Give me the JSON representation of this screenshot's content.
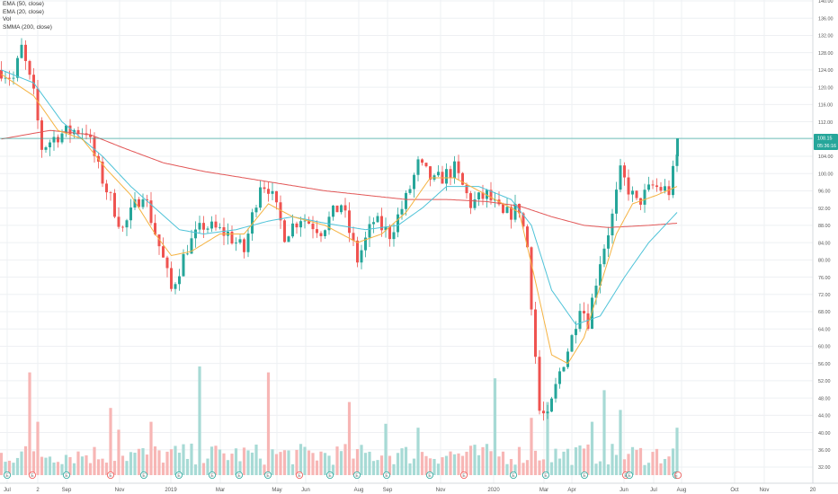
{
  "legend": {
    "ema50": "EMA (50, close)",
    "ema20": "EMA (20, close)",
    "vol": "Vol",
    "smma200": "SMMA (200, close)"
  },
  "price_tags": {
    "last_price": "108.15",
    "countdown": "05:36:16"
  },
  "colors": {
    "up": "#26a69a",
    "down": "#ef5350",
    "vol_up": "#a7dad5",
    "vol_down": "#f7b6b5",
    "ema50": "#4fc3d8",
    "ema20": "#f5b342",
    "smma200": "#e25757",
    "price_line": "#26a69a",
    "grid": "#eef0f3",
    "axis_text": "#555555"
  },
  "chart_data": {
    "type": "candlestick",
    "price_axis": {
      "ticks": [
        "140.00",
        "136.00",
        "132.00",
        "128.00",
        "124.00",
        "120.00",
        "116.00",
        "112.00",
        "108.00",
        "104.00",
        "100.00",
        "96.00",
        "92.00",
        "88.00",
        "84.00",
        "80.00",
        "76.00",
        "72.00",
        "68.00",
        "64.00",
        "60.00",
        "56.00",
        "52.00",
        "48.00",
        "44.00",
        "40.00",
        "36.00",
        "32.00"
      ],
      "range": [
        30,
        141
      ]
    },
    "time_axis": {
      "labels": [
        "Jul",
        "2",
        "Sep",
        "Nov",
        "2019",
        "Mar",
        "May",
        "Jun",
        "Aug",
        "Sep",
        "Nov",
        "2020",
        "Mar",
        "Apr",
        "Jun",
        "Jul",
        "Aug",
        "Oct",
        "Nov",
        "20"
      ]
    },
    "last_price": 108.15,
    "earnings_markers": 22,
    "price_path": [
      {
        "t": 0,
        "v": 124
      },
      {
        "t": 3,
        "v": 122
      },
      {
        "t": 5,
        "v": 129
      },
      {
        "t": 8,
        "v": 118
      },
      {
        "t": 10,
        "v": 106
      },
      {
        "t": 14,
        "v": 109
      },
      {
        "t": 18,
        "v": 110
      },
      {
        "t": 21,
        "v": 110
      },
      {
        "t": 24,
        "v": 101
      },
      {
        "t": 30,
        "v": 87
      },
      {
        "t": 35,
        "v": 96
      },
      {
        "t": 40,
        "v": 80
      },
      {
        "t": 42,
        "v": 73
      },
      {
        "t": 46,
        "v": 83
      },
      {
        "t": 50,
        "v": 88
      },
      {
        "t": 56,
        "v": 86
      },
      {
        "t": 60,
        "v": 82
      },
      {
        "t": 64,
        "v": 98
      },
      {
        "t": 66,
        "v": 97
      },
      {
        "t": 70,
        "v": 86
      },
      {
        "t": 74,
        "v": 90
      },
      {
        "t": 79,
        "v": 87
      },
      {
        "t": 84,
        "v": 93
      },
      {
        "t": 88,
        "v": 80
      },
      {
        "t": 92,
        "v": 89
      },
      {
        "t": 96,
        "v": 86
      },
      {
        "t": 100,
        "v": 94
      },
      {
        "t": 103,
        "v": 102
      },
      {
        "t": 107,
        "v": 98
      },
      {
        "t": 112,
        "v": 101
      },
      {
        "t": 116,
        "v": 93
      },
      {
        "t": 120,
        "v": 95
      },
      {
        "t": 124,
        "v": 90
      },
      {
        "t": 128,
        "v": 92
      },
      {
        "t": 130,
        "v": 83
      },
      {
        "t": 133,
        "v": 45
      },
      {
        "t": 135,
        "v": 43
      },
      {
        "t": 138,
        "v": 54
      },
      {
        "t": 141,
        "v": 62
      },
      {
        "t": 143,
        "v": 70
      },
      {
        "t": 145,
        "v": 66
      },
      {
        "t": 148,
        "v": 80
      },
      {
        "t": 151,
        "v": 90
      },
      {
        "t": 153,
        "v": 100
      },
      {
        "t": 157,
        "v": 93
      },
      {
        "t": 161,
        "v": 97
      },
      {
        "t": 165,
        "v": 96
      },
      {
        "t": 167,
        "v": 104
      }
    ],
    "ema50_path": [
      {
        "t": 0,
        "v": 124
      },
      {
        "t": 8,
        "v": 121
      },
      {
        "t": 15,
        "v": 112
      },
      {
        "t": 20,
        "v": 108
      },
      {
        "t": 25,
        "v": 104
      },
      {
        "t": 32,
        "v": 97
      },
      {
        "t": 38,
        "v": 92
      },
      {
        "t": 44,
        "v": 87
      },
      {
        "t": 50,
        "v": 86
      },
      {
        "t": 58,
        "v": 87
      },
      {
        "t": 66,
        "v": 89
      },
      {
        "t": 72,
        "v": 90
      },
      {
        "t": 80,
        "v": 88.5
      },
      {
        "t": 90,
        "v": 87
      },
      {
        "t": 98,
        "v": 88
      },
      {
        "t": 104,
        "v": 92
      },
      {
        "t": 110,
        "v": 97
      },
      {
        "t": 118,
        "v": 97
      },
      {
        "t": 126,
        "v": 94
      },
      {
        "t": 131,
        "v": 88
      },
      {
        "t": 136,
        "v": 73
      },
      {
        "t": 142,
        "v": 65
      },
      {
        "t": 148,
        "v": 67
      },
      {
        "t": 154,
        "v": 76
      },
      {
        "t": 160,
        "v": 84
      },
      {
        "t": 164,
        "v": 88
      },
      {
        "t": 167,
        "v": 91
      }
    ],
    "ema20_path": [
      {
        "t": 0,
        "v": 123
      },
      {
        "t": 8,
        "v": 118
      },
      {
        "t": 14,
        "v": 110
      },
      {
        "t": 20,
        "v": 108
      },
      {
        "t": 26,
        "v": 101
      },
      {
        "t": 32,
        "v": 95
      },
      {
        "t": 38,
        "v": 86
      },
      {
        "t": 42,
        "v": 81
      },
      {
        "t": 47,
        "v": 82
      },
      {
        "t": 54,
        "v": 86
      },
      {
        "t": 60,
        "v": 86
      },
      {
        "t": 66,
        "v": 93
      },
      {
        "t": 72,
        "v": 90
      },
      {
        "t": 80,
        "v": 88
      },
      {
        "t": 88,
        "v": 84
      },
      {
        "t": 94,
        "v": 86
      },
      {
        "t": 100,
        "v": 91
      },
      {
        "t": 106,
        "v": 99
      },
      {
        "t": 112,
        "v": 99
      },
      {
        "t": 120,
        "v": 95
      },
      {
        "t": 128,
        "v": 91
      },
      {
        "t": 132,
        "v": 75
      },
      {
        "t": 136,
        "v": 58
      },
      {
        "t": 140,
        "v": 56
      },
      {
        "t": 144,
        "v": 62
      },
      {
        "t": 148,
        "v": 74
      },
      {
        "t": 152,
        "v": 86
      },
      {
        "t": 156,
        "v": 93
      },
      {
        "t": 162,
        "v": 95
      },
      {
        "t": 167,
        "v": 97
      }
    ],
    "smma200_path": [
      {
        "t": 0,
        "v": 108
      },
      {
        "t": 12,
        "v": 110
      },
      {
        "t": 22,
        "v": 109
      },
      {
        "t": 30,
        "v": 106
      },
      {
        "t": 40,
        "v": 102.5
      },
      {
        "t": 50,
        "v": 100.5
      },
      {
        "t": 60,
        "v": 99
      },
      {
        "t": 70,
        "v": 97.5
      },
      {
        "t": 80,
        "v": 96
      },
      {
        "t": 90,
        "v": 95
      },
      {
        "t": 100,
        "v": 94
      },
      {
        "t": 110,
        "v": 94
      },
      {
        "t": 120,
        "v": 93.5
      },
      {
        "t": 128,
        "v": 92.5
      },
      {
        "t": 136,
        "v": 90
      },
      {
        "t": 144,
        "v": 88
      },
      {
        "t": 150,
        "v": 87.5
      },
      {
        "t": 160,
        "v": 88
      },
      {
        "t": 167,
        "v": 88.5
      }
    ],
    "volume_spikes": [
      {
        "t": 7,
        "v": 5.2
      },
      {
        "t": 9,
        "v": 2.7
      },
      {
        "t": 27,
        "v": 3.4
      },
      {
        "t": 29,
        "v": 2.3
      },
      {
        "t": 37,
        "v": 2.7
      },
      {
        "t": 49,
        "v": 5.5
      },
      {
        "t": 66,
        "v": 5.2
      },
      {
        "t": 86,
        "v": 3.7
      },
      {
        "t": 95,
        "v": 2.6
      },
      {
        "t": 103,
        "v": 2.4
      },
      {
        "t": 122,
        "v": 4.9
      },
      {
        "t": 131,
        "v": 2.9
      },
      {
        "t": 135,
        "v": 3.7
      },
      {
        "t": 146,
        "v": 2.7
      },
      {
        "t": 149,
        "v": 4.3
      },
      {
        "t": 153,
        "v": 3.3
      },
      {
        "t": 167,
        "v": 2.4
      }
    ]
  }
}
